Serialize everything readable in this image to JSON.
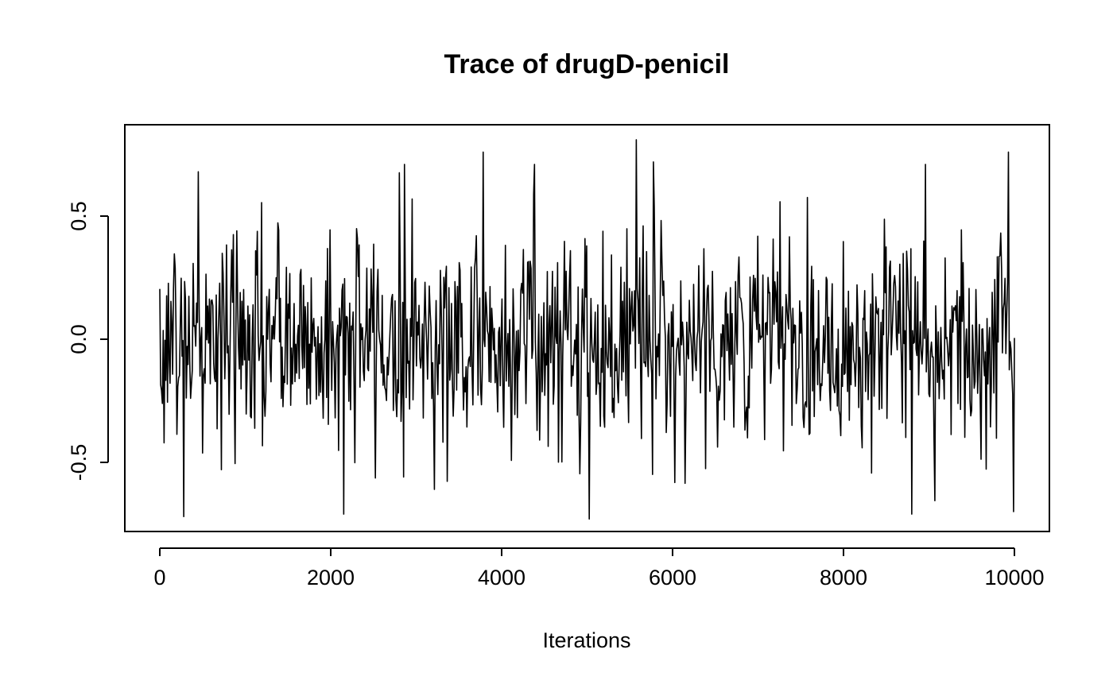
{
  "chart_data": {
    "type": "line",
    "title": "Trace of drugD-penicil",
    "xlabel": "Iterations",
    "ylabel": "",
    "xlim": [
      0,
      10000
    ],
    "ylim": [
      -0.73,
      0.81
    ],
    "x_ticks": [
      0,
      2000,
      4000,
      6000,
      8000,
      10000
    ],
    "x_tick_labels": [
      "0",
      "2000",
      "4000",
      "6000",
      "8000",
      "10000"
    ],
    "y_ticks": [
      -0.5,
      0.0,
      0.5
    ],
    "y_tick_labels": [
      "-0.5",
      "0.0",
      "0.5"
    ],
    "grid": false,
    "legend": "none",
    "line_color": "#000000",
    "series": [
      {
        "x_start": 0,
        "x_end": 10000,
        "points_shown": 1000,
        "y_range_observed": [
          -0.73,
          0.81
        ],
        "notable_extremes": [
          {
            "x": 280,
            "y": -0.72
          },
          {
            "x": 450,
            "y": 0.68
          },
          {
            "x": 2150,
            "y": -0.71
          },
          {
            "x": 2860,
            "y": 0.71
          },
          {
            "x": 3780,
            "y": 0.76
          },
          {
            "x": 4380,
            "y": 0.71
          },
          {
            "x": 5030,
            "y": -0.73
          },
          {
            "x": 5580,
            "y": 0.81
          },
          {
            "x": 5780,
            "y": 0.72
          },
          {
            "x": 8800,
            "y": -0.71
          },
          {
            "x": 8960,
            "y": 0.71
          },
          {
            "x": 9930,
            "y": 0.76
          },
          {
            "x": 9990,
            "y": -0.7
          }
        ]
      }
    ]
  }
}
